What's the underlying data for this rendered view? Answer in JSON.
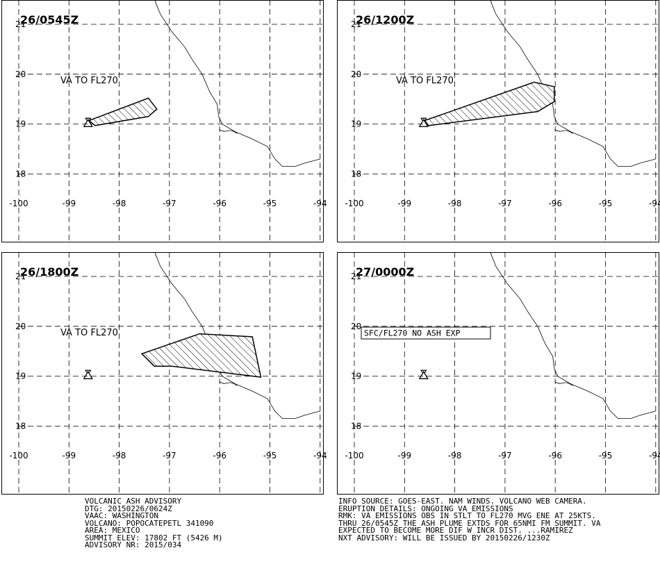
{
  "map": {
    "lon_ticks": [
      -100,
      -99,
      -98,
      -97,
      -96,
      -95,
      -94
    ],
    "lat_ticks": [
      21,
      20,
      19,
      18
    ],
    "lon_tick_labels": [
      "-100",
      "-99",
      "-98",
      "-97",
      "-96",
      "-95",
      "-94"
    ],
    "lat_tick_labels": [
      "21",
      "20",
      "19",
      "18"
    ],
    "volcano": {
      "name": "POPOCATEPETL",
      "lat": 19.02,
      "lon": -98.62
    },
    "coastline": [
      [
        -97.32,
        21.66
      ],
      [
        -97.28,
        21.45
      ],
      [
        -97.18,
        21.2
      ],
      [
        -96.95,
        20.85
      ],
      [
        -96.7,
        20.55
      ],
      [
        -96.55,
        20.3
      ],
      [
        -96.35,
        20.0
      ],
      [
        -96.2,
        19.65
      ],
      [
        -96.05,
        19.4
      ],
      [
        -96.02,
        19.15
      ],
      [
        -95.95,
        19.0
      ],
      [
        -95.7,
        18.85
      ],
      [
        -95.35,
        18.7
      ],
      [
        -95.05,
        18.55
      ],
      [
        -94.9,
        18.3
      ],
      [
        -94.75,
        18.15
      ],
      [
        -94.5,
        18.15
      ],
      [
        -94.3,
        18.22
      ],
      [
        -94.0,
        18.3
      ]
    ],
    "hatch_color": "#000000",
    "line_color": "#000000"
  },
  "panels": [
    {
      "title": "26/0545Z",
      "label": "VA TO FL270",
      "label_boxed": false,
      "ash_polygon": [
        [
          -98.6,
          19.07
        ],
        [
          -97.42,
          19.52
        ],
        [
          -97.25,
          19.3
        ],
        [
          -97.42,
          19.15
        ],
        [
          -98.48,
          18.97
        ]
      ]
    },
    {
      "title": "26/1200Z",
      "label": "VA TO FL270",
      "label_boxed": false,
      "ash_polygon": [
        [
          -98.6,
          19.07
        ],
        [
          -96.42,
          19.84
        ],
        [
          -96.02,
          19.75
        ],
        [
          -96.02,
          19.45
        ],
        [
          -96.35,
          19.25
        ],
        [
          -98.52,
          18.97
        ]
      ]
    },
    {
      "title": "26/1800Z",
      "label": "VA TO FL270",
      "label_boxed": false,
      "ash_polygon": [
        [
          -97.55,
          19.45
        ],
        [
          -96.4,
          19.85
        ],
        [
          -95.35,
          19.79
        ],
        [
          -95.18,
          18.98
        ],
        [
          -96.95,
          19.2
        ],
        [
          -97.3,
          19.2
        ]
      ]
    },
    {
      "title": "27/0000Z",
      "label": "SFC/FL270 NO ASH EXP",
      "label_boxed": true,
      "ash_polygon": []
    }
  ],
  "advisory_left": [
    "VOLCANIC ASH ADVISORY",
    "DTG: 20150226/0624Z",
    "VAAC: WASHINGTON",
    "VOLCANO: POPOCATEPETL 341090",
    "AREA: MEXICO",
    "SUMMIT ELEV: 17802 FT (5426 M)",
    "ADVISORY NR: 2015/034"
  ],
  "advisory_right": [
    "INFO SOURCE: GOES-EAST. NAM WINDS. VOLCANO WEB CAMERA.",
    "ERUPTION DETAILS: ONGOING VA EMISSIONS",
    "RMK: VA EMISSIONS OBS IN STLT TO FL270 MVG ENE AT 25KTS.",
    "THRU 26/0545Z THE ASH PLUME EXTDS FOR 65NMI FM SUMMIT. VA",
    "EXPECTED TO BECOME MORE DIF W INCR DIST. ...RAMIREZ",
    "NXT ADVISORY: WILL BE ISSUED BY 20150226/1230Z"
  ]
}
